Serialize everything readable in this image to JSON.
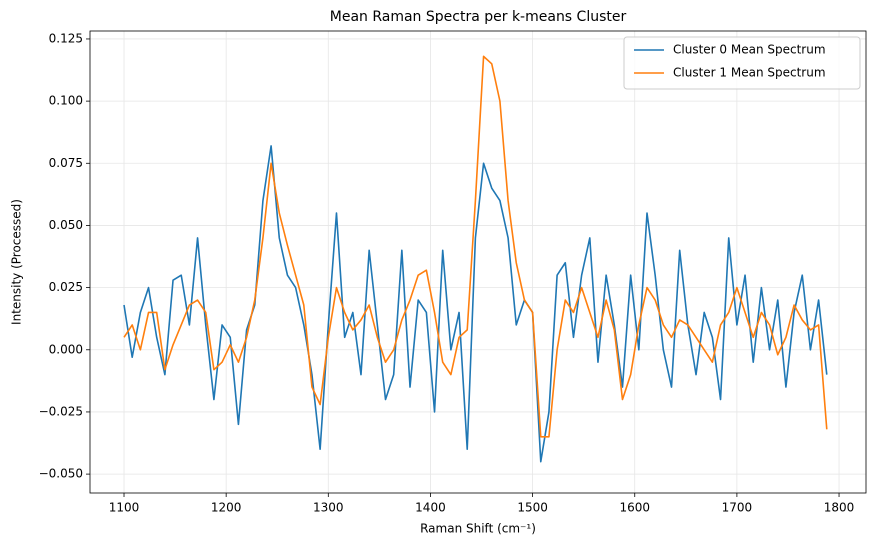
{
  "chart_data": {
    "type": "line",
    "title": "Mean Raman Spectra per k-means Cluster",
    "xlabel": "Raman Shift (cm⁻¹)",
    "ylabel": "Intensity (Processed)",
    "x": [
      1100,
      1108,
      1116,
      1124,
      1132,
      1140,
      1148,
      1156,
      1164,
      1172,
      1180,
      1188,
      1196,
      1204,
      1212,
      1220,
      1228,
      1236,
      1244,
      1252,
      1260,
      1268,
      1276,
      1284,
      1292,
      1300,
      1308,
      1316,
      1324,
      1332,
      1340,
      1348,
      1356,
      1364,
      1372,
      1380,
      1388,
      1396,
      1404,
      1412,
      1420,
      1428,
      1436,
      1444,
      1452,
      1460,
      1468,
      1476,
      1484,
      1492,
      1500,
      1508,
      1516,
      1524,
      1532,
      1540,
      1548,
      1556,
      1564,
      1572,
      1580,
      1588,
      1596,
      1604,
      1612,
      1620,
      1628,
      1636,
      1644,
      1652,
      1660,
      1668,
      1676,
      1684,
      1692,
      1700,
      1708,
      1716,
      1724,
      1732,
      1740,
      1748,
      1756,
      1764,
      1772,
      1780,
      1788
    ],
    "series": [
      {
        "name": "Cluster 0 Mean Spectrum",
        "color": "#1f77b4",
        "values": [
          0.018,
          -0.003,
          0.015,
          0.025,
          0.005,
          -0.01,
          0.028,
          0.03,
          0.01,
          0.045,
          0.01,
          -0.02,
          0.01,
          0.005,
          -0.03,
          0.008,
          0.018,
          0.06,
          0.082,
          0.045,
          0.03,
          0.025,
          0.01,
          -0.01,
          -0.04,
          0.01,
          0.055,
          0.005,
          0.015,
          -0.01,
          0.04,
          0.01,
          -0.02,
          -0.01,
          0.04,
          -0.015,
          0.02,
          0.015,
          -0.025,
          0.04,
          0.0,
          0.015,
          -0.04,
          0.045,
          0.075,
          0.065,
          0.06,
          0.045,
          0.01,
          0.02,
          0.015,
          -0.045,
          -0.025,
          0.03,
          0.035,
          0.005,
          0.03,
          0.045,
          -0.005,
          0.03,
          0.01,
          -0.015,
          0.03,
          0.0,
          0.055,
          0.03,
          0.0,
          -0.015,
          0.04,
          0.01,
          -0.01,
          0.015,
          0.005,
          -0.02,
          0.045,
          0.01,
          0.03,
          -0.005,
          0.025,
          0.0,
          0.02,
          -0.015,
          0.015,
          0.03,
          0.0,
          0.02,
          -0.01
        ]
      },
      {
        "name": "Cluster 1 Mean Spectrum",
        "color": "#ff7f0e",
        "values": [
          0.005,
          0.01,
          0.0,
          0.015,
          0.015,
          -0.008,
          0.002,
          0.01,
          0.018,
          0.02,
          0.015,
          -0.008,
          -0.005,
          0.002,
          -0.005,
          0.005,
          0.02,
          0.045,
          0.075,
          0.055,
          0.042,
          0.03,
          0.018,
          -0.015,
          -0.022,
          0.005,
          0.025,
          0.015,
          0.008,
          0.012,
          0.018,
          0.005,
          -0.005,
          0.0,
          0.012,
          0.02,
          0.03,
          0.032,
          0.015,
          -0.005,
          -0.01,
          0.005,
          0.008,
          0.06,
          0.118,
          0.115,
          0.1,
          0.06,
          0.035,
          0.02,
          0.015,
          -0.035,
          -0.035,
          0.0,
          0.02,
          0.015,
          0.025,
          0.015,
          0.005,
          0.02,
          0.008,
          -0.02,
          -0.01,
          0.01,
          0.025,
          0.02,
          0.01,
          0.005,
          0.012,
          0.01,
          0.005,
          0.0,
          -0.005,
          0.01,
          0.015,
          0.025,
          0.015,
          0.005,
          0.015,
          0.01,
          -0.002,
          0.005,
          0.018,
          0.012,
          0.008,
          0.01,
          -0.032
        ]
      }
    ],
    "xlim": [
      1066.7,
      1826.4
    ],
    "ylim": [
      -0.0576,
      0.1282
    ],
    "xticks": [
      1100,
      1200,
      1300,
      1400,
      1500,
      1600,
      1700,
      1800
    ],
    "yticks": [
      {
        "value": -0.05,
        "label": "−0.050"
      },
      {
        "value": -0.025,
        "label": "−0.025"
      },
      {
        "value": 0,
        "label": "0.000"
      },
      0.025,
      {
        "value": 0.05,
        "label": "0.050"
      },
      0.075,
      {
        "value": 0.1,
        "label": "0.100"
      },
      0.125
    ],
    "grid": true,
    "legend": "upper right"
  }
}
